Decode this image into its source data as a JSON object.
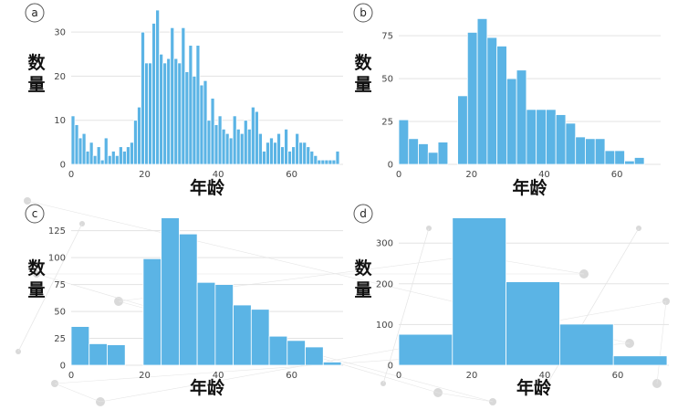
{
  "chart_data": [
    {
      "type": "bar",
      "panel_label": "a",
      "xlabel": "年龄",
      "ylabel": "数量",
      "xlim": [
        0,
        74
      ],
      "ylim": [
        0,
        35
      ],
      "bin_width": 1,
      "xticks": [
        0,
        20,
        40,
        60
      ],
      "yticks": [
        0,
        10,
        20,
        30
      ],
      "x": [
        0,
        1,
        2,
        3,
        4,
        5,
        6,
        7,
        8,
        9,
        10,
        11,
        12,
        13,
        14,
        15,
        16,
        17,
        18,
        19,
        20,
        21,
        22,
        23,
        24,
        25,
        26,
        27,
        28,
        29,
        30,
        31,
        32,
        33,
        34,
        35,
        36,
        37,
        38,
        39,
        40,
        41,
        42,
        43,
        44,
        45,
        46,
        47,
        48,
        49,
        50,
        51,
        52,
        53,
        54,
        55,
        56,
        57,
        58,
        59,
        60,
        61,
        62,
        63,
        64,
        65,
        66,
        67,
        68,
        69,
        70,
        71,
        72
      ],
      "values": [
        11,
        9,
        6,
        7,
        3,
        5,
        2,
        4,
        1,
        6,
        2,
        3,
        2,
        4,
        3,
        4,
        5,
        10,
        13,
        30,
        23,
        23,
        32,
        35,
        25,
        23,
        24,
        31,
        24,
        23,
        31,
        21,
        27,
        20,
        27,
        18,
        19,
        10,
        15,
        9,
        11,
        8,
        7,
        6,
        11,
        8,
        7,
        10,
        8,
        13,
        12,
        7,
        3,
        5,
        6,
        5,
        7,
        4,
        8,
        3,
        4,
        7,
        5,
        5,
        4,
        3,
        2,
        1,
        1,
        1,
        1,
        1,
        3
      ]
    },
    {
      "type": "bar",
      "panel_label": "b",
      "xlabel": "年龄",
      "ylabel": "数量",
      "xlim": [
        0,
        72
      ],
      "ylim": [
        0,
        90
      ],
      "bin_width": 2.7,
      "xticks": [
        0,
        20,
        40,
        60
      ],
      "yticks": [
        0,
        25,
        50,
        75
      ],
      "x": [
        0,
        2.7,
        5.4,
        8.1,
        10.8,
        13.5,
        16.2,
        18.9,
        21.6,
        24.3,
        27,
        29.7,
        32.4,
        35.1,
        37.8,
        40.5,
        43.2,
        45.9,
        48.6,
        51.3,
        54,
        56.7,
        59.4,
        62.1,
        64.8,
        67.5,
        70.2
      ],
      "values": [
        26,
        15,
        12,
        7,
        13,
        0,
        40,
        77,
        85,
        74,
        69,
        50,
        55,
        32,
        32,
        32,
        29,
        24,
        16,
        15,
        15,
        8,
        8,
        2,
        4,
        0,
        0
      ]
    },
    {
      "type": "bar",
      "panel_label": "c",
      "xlabel": "年龄",
      "ylabel": "数量",
      "xlim": [
        0,
        74
      ],
      "ylim": [
        0,
        140
      ],
      "bin_width": 4.9,
      "xticks": [
        0,
        20,
        40,
        60
      ],
      "yticks": [
        0,
        25,
        50,
        75,
        100,
        125
      ],
      "x": [
        0,
        4.9,
        9.8,
        14.7,
        19.6,
        24.5,
        29.4,
        34.3,
        39.2,
        44.1,
        49,
        53.9,
        58.8,
        63.7,
        68.6
      ],
      "values": [
        36,
        20,
        19,
        0,
        99,
        137,
        122,
        77,
        75,
        56,
        52,
        27,
        23,
        17,
        3
      ]
    },
    {
      "type": "bar",
      "panel_label": "d",
      "xlabel": "年龄",
      "ylabel": "数量",
      "xlim": [
        0,
        74
      ],
      "ylim": [
        0,
        370
      ],
      "bin_width": 14.7,
      "xticks": [
        0,
        20,
        40,
        60
      ],
      "yticks": [
        0,
        100,
        200,
        300
      ],
      "x": [
        0,
        14.7,
        29.4,
        44.1,
        58.8
      ],
      "values": [
        76,
        362,
        205,
        101,
        23
      ]
    }
  ]
}
